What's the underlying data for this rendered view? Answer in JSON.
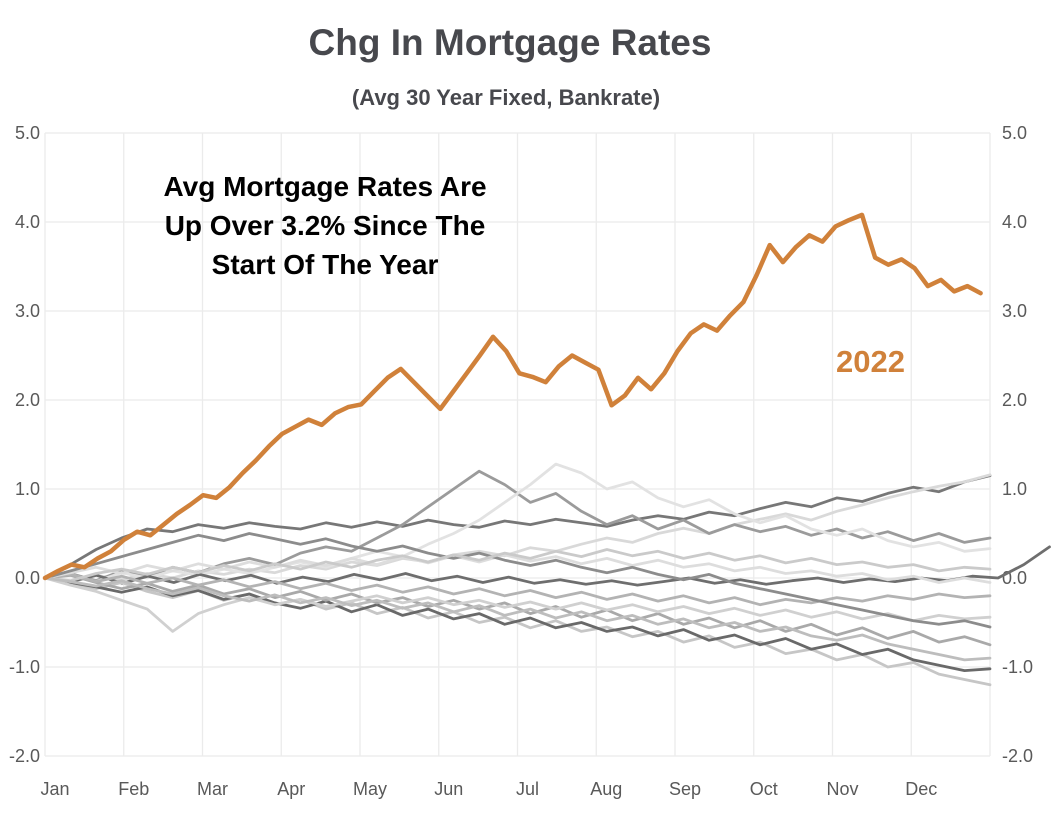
{
  "title": "Chg In Mortgage Rates",
  "subtitle": "(Avg 30 Year Fixed, Bankrate)",
  "annotation": {
    "lines": [
      "Avg Mortgage Rates Are",
      "Up Over 3.2% Since The",
      "Start Of The Year"
    ]
  },
  "series_label": "2022",
  "colors": {
    "accent_orange": "#D0813A",
    "title_gray": "#47484D",
    "axis_label_gray": "#595959",
    "gridline_gray": "#EBEBEB",
    "annotation_black": "#000000"
  },
  "chart_data": {
    "type": "line",
    "title": "Chg In Mortgage Rates",
    "subtitle": "(Avg 30 Year Fixed, Bankrate)",
    "annotation": "Avg Mortgage Rates Are Up Over 3.2% Since The Start Of The Year",
    "grid": true,
    "legend": "none (direct label '2022' on highlighted line)",
    "ylim": [
      -2.0,
      5.0
    ],
    "y_axis": {
      "ticks": [
        5.0,
        4.0,
        3.0,
        2.0,
        1.0,
        0.0,
        -1.0,
        -2.0
      ],
      "tick_labels": [
        "5.0",
        "4.0",
        "3.0",
        "2.0",
        "1.0",
        "0.0",
        "-1.0",
        "-2.0"
      ],
      "sides": "both"
    },
    "x_axis": {
      "tick_labels": [
        "Jan",
        "Feb",
        "Mar",
        "Apr",
        "May",
        "Jun",
        "Jul",
        "Aug",
        "Sep",
        "Oct",
        "Nov",
        "Dec"
      ],
      "months": 12
    },
    "highlight_series": {
      "name": "2022",
      "color": "#D0813A",
      "stroke_width": 4.5,
      "t_start": 0,
      "t_end": 0.99,
      "values": [
        0.0,
        0.08,
        0.15,
        0.12,
        0.22,
        0.3,
        0.43,
        0.52,
        0.48,
        0.6,
        0.72,
        0.82,
        0.93,
        0.9,
        1.02,
        1.18,
        1.32,
        1.48,
        1.62,
        1.7,
        1.78,
        1.72,
        1.85,
        1.92,
        1.95,
        2.1,
        2.25,
        2.35,
        2.2,
        2.05,
        1.9,
        2.1,
        2.3,
        2.5,
        2.71,
        2.55,
        2.3,
        2.26,
        2.2,
        2.38,
        2.5,
        2.42,
        2.34,
        1.94,
        2.05,
        2.25,
        2.12,
        2.3,
        2.55,
        2.75,
        2.85,
        2.78,
        2.95,
        3.1,
        3.4,
        3.74,
        3.55,
        3.72,
        3.85,
        3.78,
        3.95,
        4.02,
        4.08,
        3.6,
        3.52,
        3.58,
        3.48,
        3.28,
        3.35,
        3.22,
        3.28,
        3.2
      ]
    },
    "background_series": [
      {
        "name": "gray-1",
        "color": "#777777",
        "stroke_width": 2.8,
        "t_start": 0,
        "t_end": 1,
        "values": [
          0.0,
          0.15,
          0.32,
          0.45,
          0.55,
          0.52,
          0.6,
          0.56,
          0.62,
          0.58,
          0.55,
          0.62,
          0.57,
          0.63,
          0.58,
          0.65,
          0.6,
          0.57,
          0.64,
          0.6,
          0.66,
          0.62,
          0.58,
          0.65,
          0.7,
          0.66,
          0.74,
          0.7,
          0.78,
          0.85,
          0.8,
          0.9,
          0.86,
          0.95,
          1.02,
          0.97,
          1.08,
          1.15
        ]
      },
      {
        "name": "gray-2",
        "color": "#D9D9D9",
        "stroke_width": 2.8,
        "t_start": 0,
        "t_end": 1,
        "values": [
          0.0,
          -0.05,
          0.03,
          -0.02,
          0.05,
          0.0,
          0.08,
          0.04,
          0.1,
          0.06,
          0.14,
          0.1,
          0.18,
          0.14,
          0.22,
          0.18,
          0.26,
          0.3,
          0.25,
          0.34,
          0.3,
          0.38,
          0.45,
          0.4,
          0.5,
          0.56,
          0.5,
          0.6,
          0.66,
          0.72,
          0.65,
          0.75,
          0.82,
          0.9,
          0.97,
          1.03,
          1.08,
          1.16
        ]
      },
      {
        "name": "gray-3",
        "color": "#9B9B9B",
        "stroke_width": 2.8,
        "t_start": 0,
        "t_end": 1,
        "values": [
          0.0,
          0.05,
          -0.03,
          0.08,
          0.02,
          0.12,
          0.06,
          0.16,
          0.22,
          0.15,
          0.28,
          0.35,
          0.3,
          0.45,
          0.6,
          0.8,
          1.0,
          1.2,
          1.05,
          0.85,
          0.95,
          0.75,
          0.6,
          0.7,
          0.55,
          0.65,
          0.5,
          0.6,
          0.52,
          0.58,
          0.48,
          0.55,
          0.45,
          0.52,
          0.42,
          0.5,
          0.4,
          0.45
        ]
      },
      {
        "name": "gray-4",
        "color": "#E2E2E2",
        "stroke_width": 2.8,
        "t_start": 0,
        "t_end": 1,
        "values": [
          0.0,
          0.04,
          -0.04,
          0.06,
          0.0,
          0.08,
          0.03,
          0.1,
          0.05,
          0.12,
          0.18,
          0.12,
          0.22,
          0.3,
          0.24,
          0.38,
          0.5,
          0.65,
          0.85,
          1.05,
          1.28,
          1.18,
          1.0,
          1.08,
          0.9,
          0.8,
          0.88,
          0.72,
          0.62,
          0.7,
          0.55,
          0.48,
          0.55,
          0.42,
          0.35,
          0.4,
          0.3,
          0.33
        ]
      },
      {
        "name": "gray-5",
        "color": "#6E6E6E",
        "stroke_width": 2.8,
        "t_start": 0,
        "t_end": 1.063,
        "values": [
          0.0,
          -0.04,
          0.03,
          -0.06,
          0.02,
          -0.05,
          0.04,
          -0.03,
          0.03,
          -0.06,
          0.01,
          -0.04,
          0.04,
          -0.02,
          0.05,
          -0.03,
          0.02,
          -0.05,
          0.01,
          -0.06,
          -0.02,
          -0.07,
          -0.03,
          -0.08,
          -0.04,
          0.0,
          -0.06,
          -0.02,
          -0.07,
          -0.03,
          0.0,
          -0.05,
          -0.01,
          -0.04,
          0.0,
          -0.03,
          0.02,
          0.0,
          0.15,
          0.35
        ]
      },
      {
        "name": "gray-6",
        "color": "#C6C6C6",
        "stroke_width": 2.8,
        "t_start": 0,
        "t_end": 1,
        "values": [
          0.0,
          -0.06,
          -0.12,
          -0.05,
          -0.15,
          -0.22,
          -0.14,
          -0.25,
          -0.18,
          -0.3,
          -0.24,
          -0.35,
          -0.28,
          -0.4,
          -0.33,
          -0.45,
          -0.38,
          -0.5,
          -0.44,
          -0.56,
          -0.48,
          -0.6,
          -0.55,
          -0.66,
          -0.6,
          -0.72,
          -0.65,
          -0.78,
          -0.72,
          -0.85,
          -0.8,
          -0.92,
          -0.86,
          -1.0,
          -0.95,
          -1.08,
          -1.14,
          -1.2
        ]
      },
      {
        "name": "gray-7",
        "color": "#696969",
        "stroke_width": 2.8,
        "t_start": 0,
        "t_end": 1,
        "values": [
          0.0,
          -0.05,
          -0.1,
          -0.16,
          -0.1,
          -0.2,
          -0.14,
          -0.24,
          -0.18,
          -0.28,
          -0.34,
          -0.26,
          -0.38,
          -0.3,
          -0.42,
          -0.35,
          -0.46,
          -0.4,
          -0.52,
          -0.45,
          -0.56,
          -0.5,
          -0.6,
          -0.55,
          -0.65,
          -0.58,
          -0.7,
          -0.64,
          -0.75,
          -0.68,
          -0.8,
          -0.74,
          -0.86,
          -0.8,
          -0.92,
          -0.98,
          -1.04,
          -1.02
        ]
      },
      {
        "name": "gray-8",
        "color": "#A9A9A9",
        "stroke_width": 2.8,
        "t_start": 0,
        "t_end": 1,
        "values": [
          0.0,
          0.03,
          -0.05,
          -0.12,
          -0.06,
          -0.15,
          -0.08,
          -0.18,
          -0.12,
          -0.22,
          -0.15,
          -0.25,
          -0.18,
          -0.28,
          -0.22,
          -0.32,
          -0.25,
          -0.35,
          -0.28,
          -0.4,
          -0.32,
          -0.44,
          -0.36,
          -0.48,
          -0.4,
          -0.52,
          -0.45,
          -0.56,
          -0.48,
          -0.6,
          -0.52,
          -0.64,
          -0.56,
          -0.68,
          -0.6,
          -0.72,
          -0.66,
          -0.75
        ]
      },
      {
        "name": "gray-9",
        "color": "#D0D0D0",
        "stroke_width": 2.8,
        "t_start": 0,
        "t_end": 1,
        "values": [
          0.0,
          -0.08,
          -0.15,
          -0.25,
          -0.35,
          -0.6,
          -0.4,
          -0.3,
          -0.22,
          -0.3,
          -0.24,
          -0.32,
          -0.26,
          -0.2,
          -0.28,
          -0.22,
          -0.3,
          -0.25,
          -0.33,
          -0.27,
          -0.35,
          -0.28,
          -0.36,
          -0.3,
          -0.38,
          -0.32,
          -0.4,
          -0.34,
          -0.42,
          -0.36,
          -0.44,
          -0.38,
          -0.46,
          -0.4,
          -0.48,
          -0.42,
          -0.46,
          -0.44
        ]
      },
      {
        "name": "gray-10",
        "color": "#B3B3B3",
        "stroke_width": 2.8,
        "t_start": 0,
        "t_end": 1,
        "values": [
          0.0,
          0.04,
          -0.04,
          0.02,
          -0.06,
          0.0,
          -0.08,
          -0.02,
          -0.1,
          -0.04,
          -0.12,
          -0.06,
          -0.14,
          -0.08,
          -0.16,
          -0.1,
          -0.18,
          -0.12,
          -0.2,
          -0.14,
          -0.22,
          -0.16,
          -0.24,
          -0.18,
          -0.26,
          -0.2,
          -0.28,
          -0.22,
          -0.3,
          -0.24,
          -0.28,
          -0.22,
          -0.26,
          -0.2,
          -0.24,
          -0.18,
          -0.22,
          -0.2
        ]
      },
      {
        "name": "gray-11",
        "color": "#DDDDDD",
        "stroke_width": 2.8,
        "t_start": 0,
        "t_end": 1,
        "values": [
          0.0,
          0.06,
          0.12,
          0.05,
          0.14,
          0.08,
          0.16,
          0.1,
          0.18,
          0.12,
          0.2,
          0.14,
          0.22,
          0.15,
          0.24,
          0.17,
          0.25,
          0.18,
          0.26,
          0.19,
          0.24,
          0.16,
          0.22,
          0.14,
          0.2,
          0.12,
          0.16,
          0.08,
          0.12,
          0.05,
          0.08,
          0.02,
          0.05,
          -0.02,
          0.02,
          -0.05,
          0.0,
          -0.05
        ]
      },
      {
        "name": "gray-12",
        "color": "#8C8C8C",
        "stroke_width": 2.8,
        "t_start": 0,
        "t_end": 1,
        "values": [
          0.0,
          0.08,
          0.16,
          0.24,
          0.32,
          0.4,
          0.48,
          0.42,
          0.5,
          0.44,
          0.38,
          0.44,
          0.36,
          0.3,
          0.36,
          0.28,
          0.22,
          0.28,
          0.2,
          0.14,
          0.2,
          0.12,
          0.06,
          0.12,
          0.04,
          -0.02,
          0.04,
          -0.06,
          -0.12,
          -0.18,
          -0.24,
          -0.3,
          -0.36,
          -0.42,
          -0.48,
          -0.52,
          -0.48,
          -0.55
        ]
      },
      {
        "name": "gray-13",
        "color": "#CACACA",
        "stroke_width": 2.8,
        "t_start": 0,
        "t_end": 1,
        "values": [
          0.0,
          -0.03,
          0.05,
          0.1,
          0.04,
          0.12,
          0.06,
          0.14,
          0.08,
          0.16,
          0.1,
          0.18,
          0.12,
          0.2,
          0.25,
          0.18,
          0.26,
          0.2,
          0.28,
          0.22,
          0.3,
          0.24,
          0.32,
          0.25,
          0.3,
          0.22,
          0.28,
          0.2,
          0.25,
          0.17,
          0.22,
          0.15,
          0.18,
          0.12,
          0.15,
          0.08,
          0.12,
          0.1
        ]
      },
      {
        "name": "gray-14",
        "color": "#BDBDBD",
        "stroke_width": 2.8,
        "t_start": 0,
        "t_end": 1,
        "values": [
          0.0,
          -0.04,
          -0.09,
          -0.03,
          -0.12,
          -0.18,
          -0.11,
          -0.2,
          -0.26,
          -0.19,
          -0.28,
          -0.22,
          -0.31,
          -0.25,
          -0.34,
          -0.28,
          -0.38,
          -0.31,
          -0.42,
          -0.35,
          -0.45,
          -0.38,
          -0.48,
          -0.42,
          -0.52,
          -0.46,
          -0.56,
          -0.5,
          -0.6,
          -0.55,
          -0.65,
          -0.7,
          -0.64,
          -0.74,
          -0.8,
          -0.86,
          -0.92,
          -0.9
        ]
      }
    ]
  }
}
